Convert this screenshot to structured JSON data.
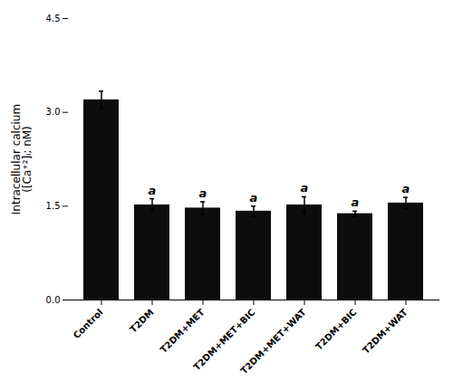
{
  "chart_data": {
    "type": "bar",
    "categories": [
      "Control",
      "T2DM",
      "T2DM+MET",
      "T2DM+MET+BIC",
      "T2DM+MET+WAT",
      "T2DM+BIC",
      "T2DM+WAT"
    ],
    "values": [
      3.2,
      1.52,
      1.47,
      1.42,
      1.52,
      1.38,
      1.55
    ],
    "errors": [
      0.14,
      0.1,
      0.1,
      0.08,
      0.13,
      0.04,
      0.09
    ],
    "color": "#0d0d0d",
    "ylim": [
      0.0,
      4.5
    ],
    "yticks": [
      {
        "value": 0,
        "label": "0.0"
      },
      1.5,
      {
        "value": 3,
        "label": "3.0"
      },
      4.5
    ],
    "ylabel": "Intracellular calcium\n([Ca⁺²]ᵢ; nM)",
    "annotations": [
      {
        "category": "T2DM",
        "text": "a"
      },
      {
        "category": "T2DM+MET",
        "text": "a"
      },
      {
        "category": "T2DM+MET+BIC",
        "text": "a"
      },
      {
        "category": "T2DM+MET+WAT",
        "text": "a"
      },
      {
        "category": "T2DM+BIC",
        "text": "a"
      },
      {
        "category": "T2DM+WAT",
        "text": "a"
      }
    ],
    "grid": false
  }
}
